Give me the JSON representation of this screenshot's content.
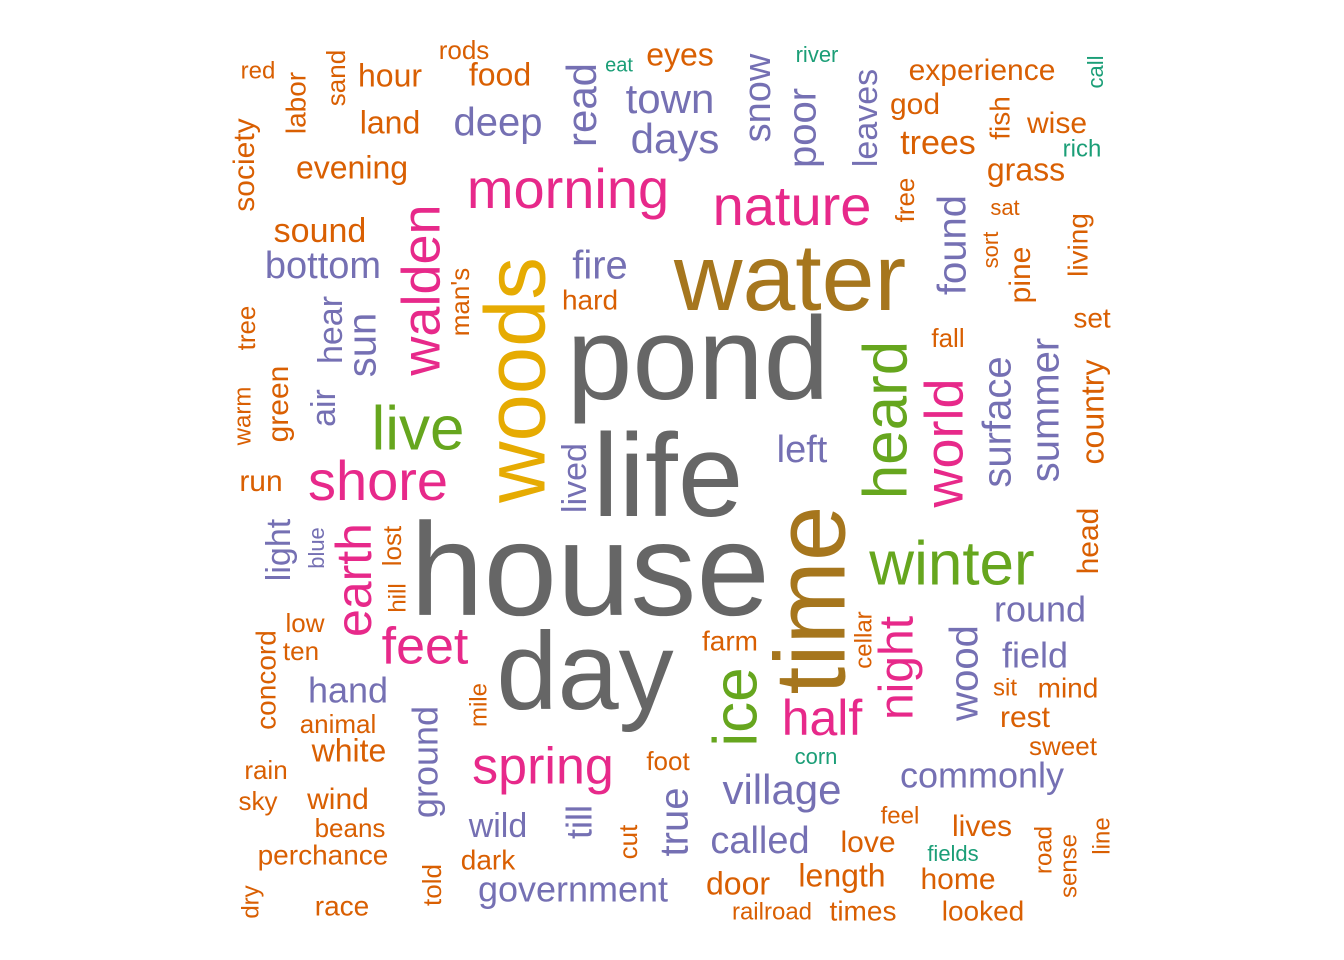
{
  "colors": {
    "gray": "#666666",
    "gold": "#a6761d",
    "yellow": "#e6ab02",
    "green": "#66a61e",
    "pink": "#e7298a",
    "purple": "#7570b3",
    "orange": "#d95f02",
    "teal": "#1b9e77"
  },
  "chart_data": {
    "type": "wordcloud",
    "words": [
      {
        "text": "house",
        "color": "gray"
      },
      {
        "text": "pond",
        "color": "gray"
      },
      {
        "text": "life",
        "color": "gray"
      },
      {
        "text": "day",
        "color": "gray"
      },
      {
        "text": "water",
        "color": "gold"
      },
      {
        "text": "time",
        "color": "gold"
      },
      {
        "text": "woods",
        "color": "yellow"
      },
      {
        "text": "winter",
        "color": "green"
      },
      {
        "text": "live",
        "color": "green"
      },
      {
        "text": "heard",
        "color": "green"
      },
      {
        "text": "ice",
        "color": "green"
      },
      {
        "text": "morning",
        "color": "pink"
      },
      {
        "text": "nature",
        "color": "pink"
      },
      {
        "text": "walden",
        "color": "pink"
      },
      {
        "text": "shore",
        "color": "pink"
      },
      {
        "text": "world",
        "color": "pink"
      },
      {
        "text": "earth",
        "color": "pink"
      },
      {
        "text": "feet",
        "color": "pink"
      },
      {
        "text": "night",
        "color": "pink"
      },
      {
        "text": "half",
        "color": "pink"
      },
      {
        "text": "spring",
        "color": "pink"
      },
      {
        "text": "town",
        "color": "purple"
      },
      {
        "text": "days",
        "color": "purple"
      },
      {
        "text": "deep",
        "color": "purple"
      },
      {
        "text": "read",
        "color": "purple"
      },
      {
        "text": "snow",
        "color": "purple"
      },
      {
        "text": "poor",
        "color": "purple"
      },
      {
        "text": "leaves",
        "color": "purple"
      },
      {
        "text": "fire",
        "color": "purple"
      },
      {
        "text": "bottom",
        "color": "purple"
      },
      {
        "text": "found",
        "color": "purple"
      },
      {
        "text": "sun",
        "color": "purple"
      },
      {
        "text": "hear",
        "color": "purple"
      },
      {
        "text": "air",
        "color": "purple"
      },
      {
        "text": "left",
        "color": "purple"
      },
      {
        "text": "surface",
        "color": "purple"
      },
      {
        "text": "summer",
        "color": "purple"
      },
      {
        "text": "lived",
        "color": "purple"
      },
      {
        "text": "light",
        "color": "purple"
      },
      {
        "text": "round",
        "color": "purple"
      },
      {
        "text": "field",
        "color": "purple"
      },
      {
        "text": "wood",
        "color": "purple"
      },
      {
        "text": "hand",
        "color": "purple"
      },
      {
        "text": "ground",
        "color": "purple"
      },
      {
        "text": "village",
        "color": "purple"
      },
      {
        "text": "commonly",
        "color": "purple"
      },
      {
        "text": "true",
        "color": "purple"
      },
      {
        "text": "till",
        "color": "purple"
      },
      {
        "text": "wild",
        "color": "purple"
      },
      {
        "text": "called",
        "color": "purple"
      },
      {
        "text": "government",
        "color": "purple"
      },
      {
        "text": "blue",
        "color": "purple"
      },
      {
        "text": "rods",
        "color": "orange"
      },
      {
        "text": "eyes",
        "color": "orange"
      },
      {
        "text": "hour",
        "color": "orange"
      },
      {
        "text": "food",
        "color": "orange"
      },
      {
        "text": "red",
        "color": "orange"
      },
      {
        "text": "sand",
        "color": "orange"
      },
      {
        "text": "labor",
        "color": "orange"
      },
      {
        "text": "land",
        "color": "orange"
      },
      {
        "text": "experience",
        "color": "orange"
      },
      {
        "text": "god",
        "color": "orange"
      },
      {
        "text": "wise",
        "color": "orange"
      },
      {
        "text": "fish",
        "color": "orange"
      },
      {
        "text": "trees",
        "color": "orange"
      },
      {
        "text": "society",
        "color": "orange"
      },
      {
        "text": "evening",
        "color": "orange"
      },
      {
        "text": "grass",
        "color": "orange"
      },
      {
        "text": "free",
        "color": "orange"
      },
      {
        "text": "sound",
        "color": "orange"
      },
      {
        "text": "sat",
        "color": "orange"
      },
      {
        "text": "sort",
        "color": "orange"
      },
      {
        "text": "pine",
        "color": "orange"
      },
      {
        "text": "living",
        "color": "orange"
      },
      {
        "text": "man's",
        "color": "orange"
      },
      {
        "text": "hard",
        "color": "orange"
      },
      {
        "text": "set",
        "color": "orange"
      },
      {
        "text": "tree",
        "color": "orange"
      },
      {
        "text": "fall",
        "color": "orange"
      },
      {
        "text": "warm",
        "color": "orange"
      },
      {
        "text": "green",
        "color": "orange"
      },
      {
        "text": "country",
        "color": "orange"
      },
      {
        "text": "run",
        "color": "orange"
      },
      {
        "text": "head",
        "color": "orange"
      },
      {
        "text": "lost",
        "color": "orange"
      },
      {
        "text": "hill",
        "color": "orange"
      },
      {
        "text": "cellar",
        "color": "orange"
      },
      {
        "text": "low",
        "color": "orange"
      },
      {
        "text": "concord",
        "color": "orange"
      },
      {
        "text": "ten",
        "color": "orange"
      },
      {
        "text": "farm",
        "color": "orange"
      },
      {
        "text": "sit",
        "color": "orange"
      },
      {
        "text": "mind",
        "color": "orange"
      },
      {
        "text": "mile",
        "color": "orange"
      },
      {
        "text": "animal",
        "color": "orange"
      },
      {
        "text": "rest",
        "color": "orange"
      },
      {
        "text": "white",
        "color": "orange"
      },
      {
        "text": "sweet",
        "color": "orange"
      },
      {
        "text": "rain",
        "color": "orange"
      },
      {
        "text": "foot",
        "color": "orange"
      },
      {
        "text": "sky",
        "color": "orange"
      },
      {
        "text": "wind",
        "color": "orange"
      },
      {
        "text": "feel",
        "color": "orange"
      },
      {
        "text": "beans",
        "color": "orange"
      },
      {
        "text": "cut",
        "color": "orange"
      },
      {
        "text": "love",
        "color": "orange"
      },
      {
        "text": "lives",
        "color": "orange"
      },
      {
        "text": "road",
        "color": "orange"
      },
      {
        "text": "sense",
        "color": "orange"
      },
      {
        "text": "line",
        "color": "orange"
      },
      {
        "text": "perchance",
        "color": "orange"
      },
      {
        "text": "dark",
        "color": "orange"
      },
      {
        "text": "told",
        "color": "orange"
      },
      {
        "text": "door",
        "color": "orange"
      },
      {
        "text": "length",
        "color": "orange"
      },
      {
        "text": "home",
        "color": "orange"
      },
      {
        "text": "dry",
        "color": "orange"
      },
      {
        "text": "race",
        "color": "orange"
      },
      {
        "text": "railroad",
        "color": "orange"
      },
      {
        "text": "times",
        "color": "orange"
      },
      {
        "text": "looked",
        "color": "orange"
      },
      {
        "text": "eat",
        "color": "teal"
      },
      {
        "text": "river",
        "color": "teal"
      },
      {
        "text": "call",
        "color": "teal"
      },
      {
        "text": "rich",
        "color": "teal"
      },
      {
        "text": "corn",
        "color": "teal"
      },
      {
        "text": "fields",
        "color": "teal"
      }
    ]
  }
}
